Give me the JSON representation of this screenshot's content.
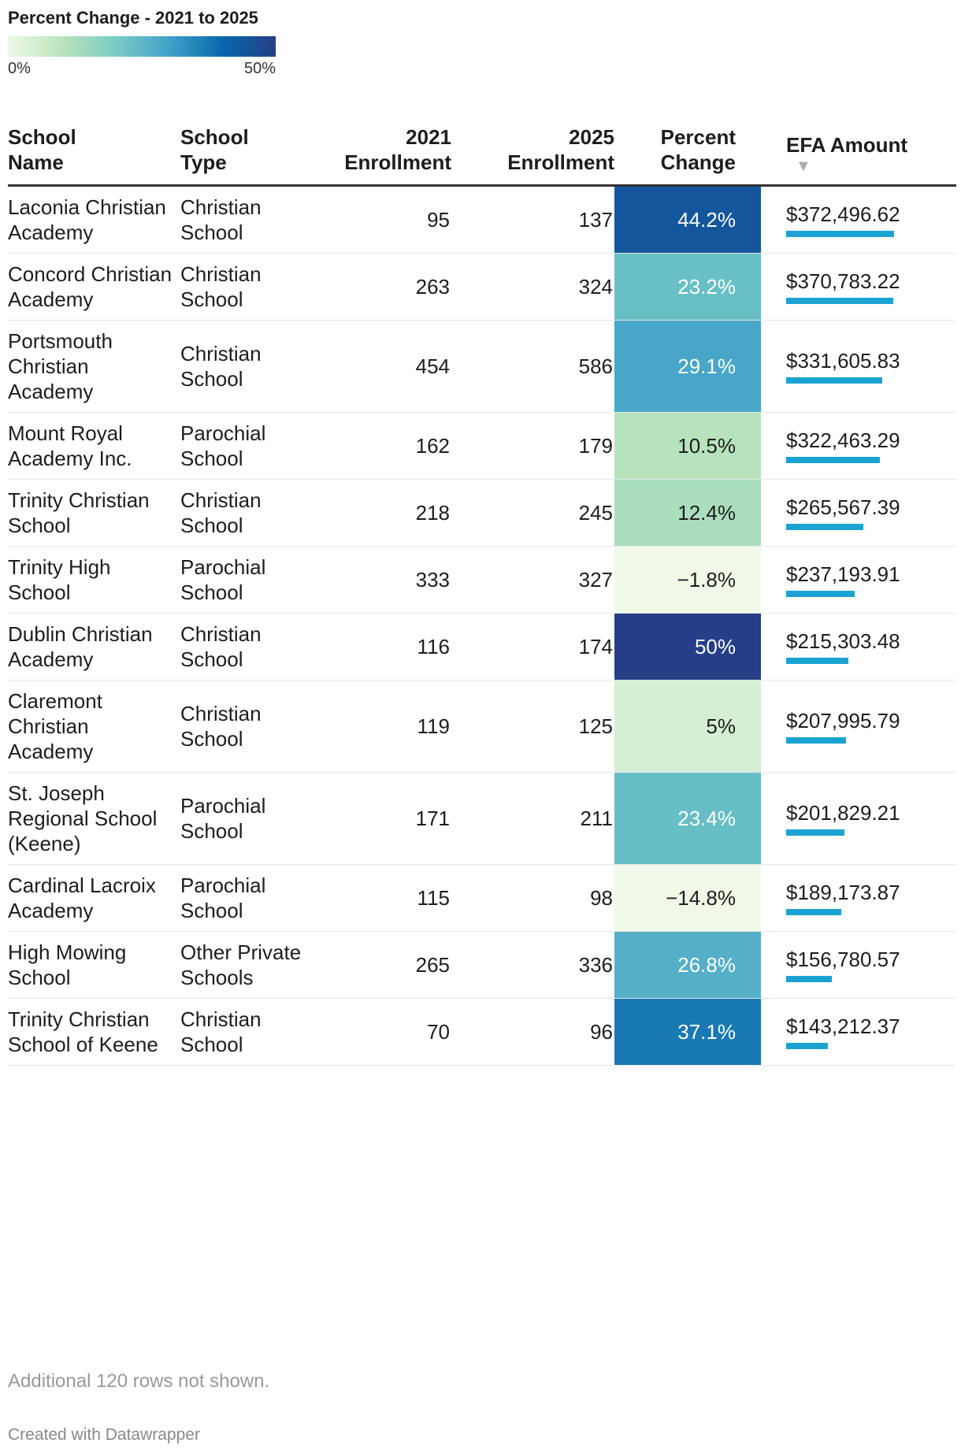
{
  "legend": {
    "title": "Percent Change - 2021 to 2025",
    "min_label": "0%",
    "max_label": "50%"
  },
  "headers": {
    "school_name": [
      "School",
      "Name"
    ],
    "school_type": [
      "School",
      "Type"
    ],
    "enroll_2021": [
      "2021",
      "Enrollment"
    ],
    "enroll_2025": [
      "2025",
      "Enrollment"
    ],
    "percent_change": [
      "Percent",
      "Change"
    ],
    "efa_amount": "EFA Amount",
    "sort_indicator": "▼"
  },
  "chart_data": {
    "type": "table",
    "title": "Percent Change - 2021 to 2025",
    "color_scale": {
      "min": 0,
      "max": 50,
      "unit": "%",
      "colors": [
        "#f0f9e8",
        "#bae4bc",
        "#7bccc4",
        "#43a2ca",
        "#0868ac",
        "#253e87"
      ]
    },
    "columns": [
      "School Name",
      "School Type",
      "2021 Enrollment",
      "2025 Enrollment",
      "Percent Change",
      "EFA Amount"
    ],
    "rows": [
      {
        "name": "Laconia Christian Academy",
        "type": "Christian School",
        "e2021": "95",
        "e2025": "137",
        "pct": 44.2,
        "pct_label": "44.2%",
        "efa": 372496.62,
        "efa_label": "$372,496.62"
      },
      {
        "name": "Concord Christian Academy",
        "type": "Christian School",
        "e2021": "263",
        "e2025": "324",
        "pct": 23.2,
        "pct_label": "23.2%",
        "efa": 370783.22,
        "efa_label": "$370,783.22"
      },
      {
        "name": "Portsmouth Christian Academy",
        "type": "Christian School",
        "e2021": "454",
        "e2025": "586",
        "pct": 29.1,
        "pct_label": "29.1%",
        "efa": 331605.83,
        "efa_label": "$331,605.83"
      },
      {
        "name": "Mount Royal Academy Inc.",
        "type": "Parochial School",
        "e2021": "162",
        "e2025": "179",
        "pct": 10.5,
        "pct_label": "10.5%",
        "efa": 322463.29,
        "efa_label": "$322,463.29"
      },
      {
        "name": "Trinity Christian School",
        "type": "Christian School",
        "e2021": "218",
        "e2025": "245",
        "pct": 12.4,
        "pct_label": "12.4%",
        "efa": 265567.39,
        "efa_label": "$265,567.39"
      },
      {
        "name": "Trinity High School",
        "type": "Parochial School",
        "e2021": "333",
        "e2025": "327",
        "pct": -1.8,
        "pct_label": "−1.8%",
        "efa": 237193.91,
        "efa_label": "$237,193.91"
      },
      {
        "name": "Dublin Christian Academy",
        "type": "Christian School",
        "e2021": "116",
        "e2025": "174",
        "pct": 50,
        "pct_label": "50%",
        "efa": 215303.48,
        "efa_label": "$215,303.48"
      },
      {
        "name": "Claremont Christian Academy",
        "type": "Christian School",
        "e2021": "119",
        "e2025": "125",
        "pct": 5,
        "pct_label": "5%",
        "efa": 207995.79,
        "efa_label": "$207,995.79"
      },
      {
        "name": "St. Joseph Regional School (Keene)",
        "type": "Parochial School",
        "e2021": "171",
        "e2025": "211",
        "pct": 23.4,
        "pct_label": "23.4%",
        "efa": 201829.21,
        "efa_label": "$201,829.21"
      },
      {
        "name": "Cardinal Lacroix Academy",
        "type": "Parochial School",
        "e2021": "115",
        "e2025": "98",
        "pct": -14.8,
        "pct_label": "−14.8%",
        "efa": 189173.87,
        "efa_label": "$189,173.87"
      },
      {
        "name": "High Mowing School",
        "type": "Other Private Schools",
        "e2021": "265",
        "e2025": "336",
        "pct": 26.8,
        "pct_label": "26.8%",
        "efa": 156780.57,
        "efa_label": "$156,780.57"
      },
      {
        "name": "Trinity Christian School of Keene",
        "type": "Christian School",
        "e2021": "70",
        "e2025": "96",
        "pct": 37.1,
        "pct_label": "37.1%",
        "efa": 143212.37,
        "efa_label": "$143,212.37"
      }
    ]
  },
  "footnote": "Additional 120 rows not shown.",
  "credit": "Created with Datawrapper"
}
